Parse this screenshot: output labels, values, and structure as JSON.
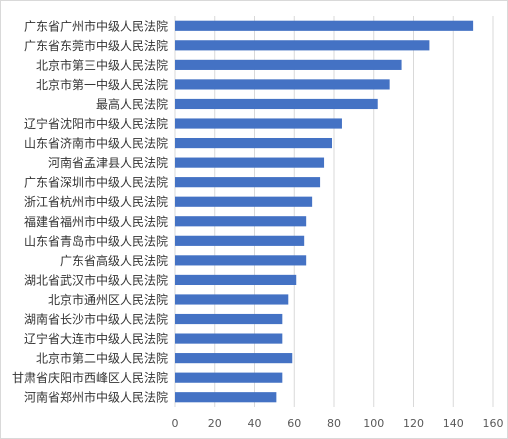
{
  "chart_data": {
    "type": "bar",
    "orientation": "horizontal",
    "title": "",
    "xlabel": "",
    "ylabel": "",
    "categories": [
      "广东省广州市中级人民法院",
      "广东省东莞市中级人民法院",
      "北京市第三中级人民法院",
      "北京市第一中级人民法院",
      "最高人民法院",
      "辽宁省沈阳市中级人民法院",
      "山东省济南市中级人民法院",
      "河南省孟津县人民法院",
      "广东省深圳市中级人民法院",
      "浙江省杭州市中级人民法院",
      "福建省福州市中级人民法院",
      "山东省青岛市中级人民法院",
      "广东省高级人民法院",
      "湖北省武汉市中级人民法院",
      "北京市通州区人民法院",
      "湖南省长沙市中级人民法院",
      "辽宁省大连市中级人民法院",
      "北京市第二中级人民法院",
      "甘肃省庆阳市西峰区人民法院",
      "河南省郑州市中级人民法院"
    ],
    "values": [
      150,
      128,
      114,
      108,
      102,
      84,
      79,
      75,
      73,
      69,
      66,
      65,
      66,
      61,
      57,
      54,
      54,
      59,
      54,
      51
    ],
    "xlim": [
      0,
      160
    ],
    "xticks": [
      "0",
      "20",
      "40",
      "60",
      "80",
      "100",
      "120",
      "140",
      "160"
    ],
    "grid": "vertical",
    "legend": "none",
    "bar_color": "#4472c4",
    "grid_color": "#d9d9d9"
  }
}
